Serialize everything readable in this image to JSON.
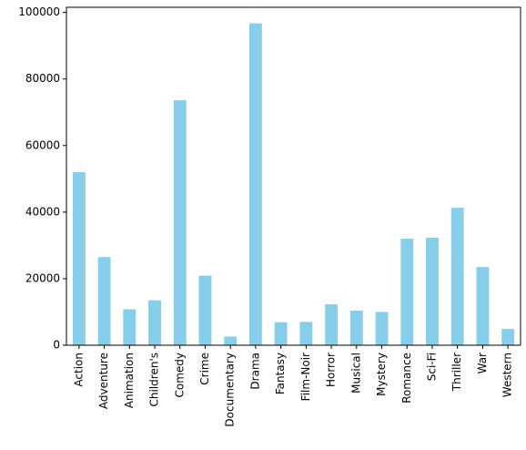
{
  "chart_data": {
    "type": "bar",
    "categories": [
      "Action",
      "Adventure",
      "Animation",
      "Children's",
      "Comedy",
      "Crime",
      "Documentary",
      "Drama",
      "Fantasy",
      "Film-Noir",
      "Horror",
      "Musical",
      "Mystery",
      "Romance",
      "Sci-Fi",
      "Thriller",
      "War",
      "Western"
    ],
    "values": [
      52000,
      26500,
      10800,
      13500,
      73600,
      20900,
      2600,
      96700,
      6900,
      7000,
      12300,
      10400,
      10000,
      32000,
      32300,
      41300,
      23500,
      4900
    ],
    "color": "#87ceeb",
    "ylim": [
      0,
      101535
    ],
    "yticks": [
      0,
      20000,
      40000,
      60000,
      80000,
      100000
    ],
    "grid": false
  }
}
